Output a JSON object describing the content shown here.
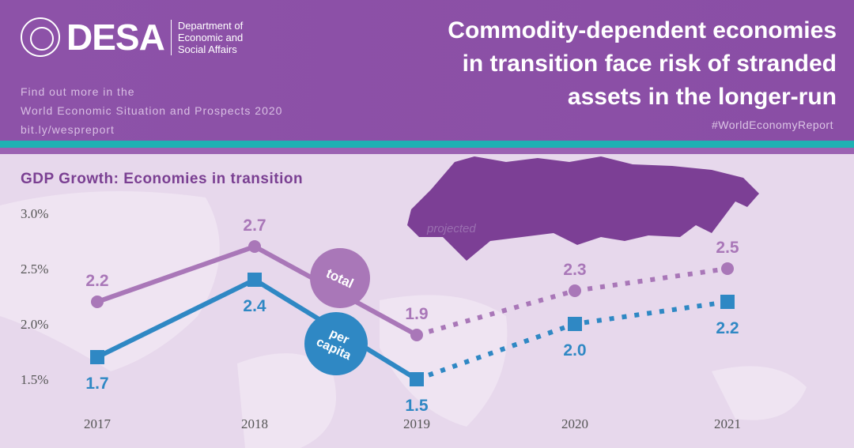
{
  "header": {
    "org_short": "DESA",
    "org_full": [
      "Department of",
      "Economic and",
      "Social Affairs"
    ],
    "find_more": [
      "Find out more in the",
      "World Economic Situation and Prospects 2020",
      "bit.ly/wespreport"
    ],
    "title": [
      "Commodity-dependent economies",
      "in transition face risk of stranded",
      "assets in the longer-run"
    ],
    "hashtag": "#WorldEconomyReport"
  },
  "colors": {
    "total": "#a977b8",
    "per_capita": "#2f88c4",
    "header": "#8b50a6",
    "accent": "#1fb1b3",
    "map_highlight": "#7c3f95"
  },
  "chart_data": {
    "type": "line",
    "title": "GDP Growth: Economies in transition",
    "x": [
      "2017",
      "2018",
      "2019",
      "2020",
      "2021"
    ],
    "yticks": [
      "3.0%",
      "2.5%",
      "2.0%",
      "1.5%"
    ],
    "ylim": [
      1.5,
      3.0
    ],
    "projected_from": "2019",
    "annotation": "projected",
    "series": [
      {
        "name": "total",
        "values": [
          2.2,
          2.7,
          1.9,
          2.3,
          2.5
        ],
        "labels": [
          "2.2",
          "2.7",
          "1.9",
          "2.3",
          "2.5"
        ]
      },
      {
        "name": "per capita",
        "values": [
          1.7,
          2.4,
          1.5,
          2.0,
          2.2
        ],
        "labels": [
          "1.7",
          "2.4",
          "1.5",
          "2.0",
          "2.2"
        ]
      }
    ]
  }
}
